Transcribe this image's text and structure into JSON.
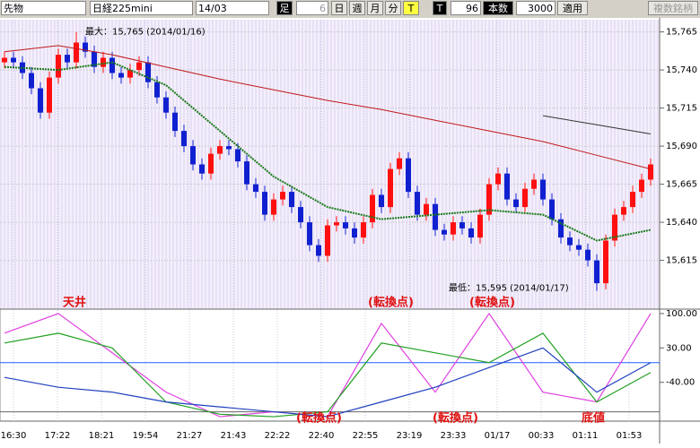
{
  "toolbar": {
    "market": "先物",
    "symbol": "日経225mini",
    "contract": "14/03",
    "bar_label": "足",
    "bar_size": "6",
    "buttons": [
      "日",
      "週",
      "月",
      "分",
      "T"
    ],
    "t_label": "T",
    "t_value": "96",
    "count_label": "本数",
    "count_value": "3000",
    "apply": "適用",
    "multi": "複数銘柄"
  },
  "price_chart": {
    "ylim": [
      15583,
      15773
    ],
    "yticks": [
      {
        "value": 15765,
        "label": "15,765"
      },
      {
        "value": 15740,
        "label": "15,740"
      },
      {
        "value": 15715,
        "label": "15,715"
      },
      {
        "value": 15690,
        "label": "15,690"
      },
      {
        "value": 15665,
        "label": "15,665"
      },
      {
        "value": 15640,
        "label": "15,640"
      },
      {
        "value": 15615,
        "label": "15,615"
      }
    ],
    "open": [
      15745,
      15748,
      15745,
      15738,
      15728,
      15712,
      15735,
      15750,
      15745,
      15758,
      15752,
      15742,
      15748,
      15738,
      15735,
      15740,
      15745,
      15732,
      15722,
      15712,
      15700,
      15690,
      15678,
      15672,
      15685,
      15690,
      15688,
      15680,
      15665,
      15660,
      15645,
      15655,
      15660,
      15650,
      15640,
      15625,
      15618,
      15638,
      15640,
      15636,
      15630,
      15640,
      15658,
      15650,
      15675,
      15682,
      15660,
      15645,
      15652,
      15635,
      15632,
      15640,
      15636,
      15630,
      15645,
      15665,
      15672,
      15655,
      15650,
      15662,
      15668,
      15655,
      15642,
      15630,
      15625,
      15622,
      15615,
      15600,
      15628,
      15645,
      15650,
      15660,
      15668
    ],
    "high": [
      15752,
      15752,
      15749,
      15742,
      15732,
      15739,
      15754,
      15754,
      15765,
      15762,
      15756,
      15752,
      15752,
      15742,
      15744,
      15749,
      15749,
      15736,
      15726,
      15716,
      15704,
      15694,
      15682,
      15689,
      15694,
      15694,
      15692,
      15684,
      15669,
      15664,
      15659,
      15664,
      15664,
      15654,
      15644,
      15629,
      15642,
      15644,
      15644,
      15640,
      15644,
      15662,
      15662,
      15679,
      15686,
      15686,
      15664,
      15656,
      15656,
      15639,
      15644,
      15644,
      15640,
      15649,
      15669,
      15676,
      15676,
      15659,
      15666,
      15672,
      15672,
      15659,
      15646,
      15634,
      15629,
      15626,
      15619,
      15632,
      15649,
      15654,
      15664,
      15672,
      15682
    ],
    "low": [
      15741,
      15741,
      15734,
      15724,
      15708,
      15708,
      15731,
      15741,
      15741,
      15748,
      15738,
      15738,
      15734,
      15731,
      15731,
      15736,
      15728,
      15718,
      15708,
      15696,
      15686,
      15674,
      15668,
      15668,
      15681,
      15684,
      15676,
      15661,
      15656,
      15641,
      15641,
      15651,
      15646,
      15636,
      15621,
      15614,
      15614,
      15634,
      15632,
      15626,
      15626,
      15636,
      15646,
      15646,
      15671,
      15656,
      15641,
      15641,
      15631,
      15628,
      15628,
      15632,
      15626,
      15626,
      15641,
      15661,
      15651,
      15646,
      15646,
      15658,
      15651,
      15638,
      15626,
      15621,
      15618,
      15611,
      15595,
      15596,
      15624,
      15641,
      15646,
      15656,
      15664
    ],
    "close": [
      15748,
      15745,
      15738,
      15728,
      15712,
      15735,
      15750,
      15745,
      15758,
      15752,
      15742,
      15748,
      15738,
      15735,
      15740,
      15745,
      15732,
      15722,
      15712,
      15700,
      15690,
      15678,
      15672,
      15685,
      15690,
      15688,
      15680,
      15665,
      15660,
      15645,
      15655,
      15660,
      15650,
      15640,
      15625,
      15618,
      15638,
      15640,
      15636,
      15630,
      15640,
      15658,
      15650,
      15675,
      15682,
      15660,
      15645,
      15652,
      15635,
      15632,
      15640,
      15636,
      15630,
      15645,
      15665,
      15672,
      15655,
      15650,
      15662,
      15668,
      15655,
      15642,
      15630,
      15625,
      15622,
      15615,
      15600,
      15628,
      15645,
      15650,
      15660,
      15668,
      15678
    ],
    "ma_x": [
      0,
      6,
      12,
      18,
      24,
      30,
      36,
      42,
      48,
      54,
      60,
      66,
      72
    ],
    "ma": [
      {
        "color": "#c01818",
        "values": [
          15752,
          15756,
          15750,
          15742,
          15734,
          15727,
          15720,
          15714,
          15707,
          15700,
          15693,
          15684,
          15675
        ]
      },
      {
        "color": "#1a7a1a",
        "values": [
          15742,
          15740,
          15745,
          15730,
          15700,
          15670,
          15650,
          15642,
          15645,
          15648,
          15645,
          15628,
          15635
        ]
      },
      {
        "color": "#333333",
        "values": [
          null,
          null,
          null,
          null,
          null,
          null,
          null,
          null,
          null,
          null,
          15710,
          15704,
          15698
        ]
      }
    ],
    "max_label": "最大：15,765 (2014/01/16)",
    "min_label": "最低：15,595 (2014/01/17)"
  },
  "indicator": {
    "ylim": [
      -119,
      109
    ],
    "yticks": [
      {
        "value": 100,
        "label": "100.00"
      },
      {
        "value": 30,
        "label": "30.00"
      },
      {
        "value": -40,
        "label": "-40.00"
      }
    ],
    "ref_lines": [
      0,
      -100
    ],
    "series": [
      {
        "color": "#e040e0",
        "values": [
          60,
          100,
          20,
          -60,
          -110,
          -100,
          -110,
          80,
          -60,
          100,
          -60,
          -80,
          100
        ]
      },
      {
        "color": "#20a020",
        "values": [
          40,
          60,
          30,
          -80,
          -105,
          -110,
          -100,
          40,
          20,
          0,
          60,
          -80,
          -20
        ]
      },
      {
        "color": "#2040c0",
        "values": [
          -30,
          -50,
          -60,
          -80,
          -90,
          -100,
          -110,
          -80,
          -50,
          -10,
          30,
          -60,
          0
        ]
      }
    ]
  },
  "time_labels": [
    "16:30",
    "17:22",
    "18:21",
    "19:54",
    "21:27",
    "21:43",
    "22:22",
    "22:40",
    "22:55",
    "23:19",
    "23:33",
    "01/17",
    "00:33",
    "01:11",
    "01:53"
  ],
  "annotations": [
    "天井",
    "(転換点)",
    "(転換点)",
    "(転換点)",
    "(転換点)",
    "底値"
  ]
}
